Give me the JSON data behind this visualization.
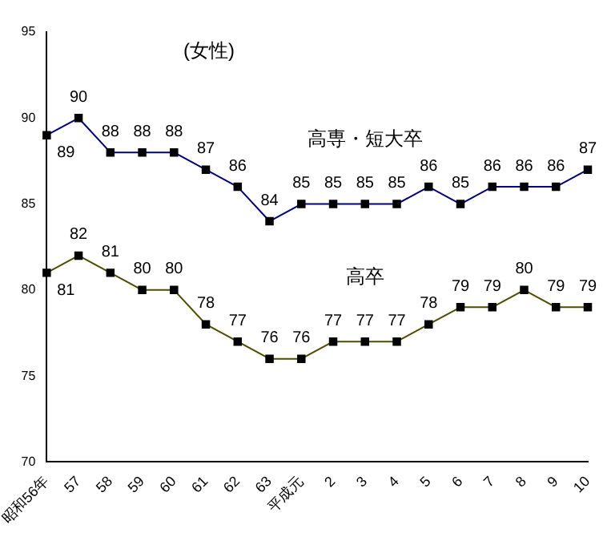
{
  "chart_data": {
    "type": "line",
    "title": "(女性)",
    "categories": [
      "昭和56年",
      "57",
      "58",
      "59",
      "60",
      "61",
      "62",
      "63",
      "平成元",
      "2",
      "3",
      "4",
      "5",
      "6",
      "7",
      "8",
      "9",
      "10"
    ],
    "series": [
      {
        "name": "高専・短大卒",
        "color": "#000080",
        "values": [
          89,
          90,
          88,
          88,
          88,
          87,
          86,
          84,
          85,
          85,
          85,
          85,
          86,
          85,
          86,
          86,
          86,
          87
        ]
      },
      {
        "name": "高卒",
        "color": "#4d4d00",
        "values": [
          81,
          82,
          81,
          80,
          80,
          78,
          77,
          76,
          76,
          77,
          77,
          77,
          78,
          79,
          79,
          80,
          79,
          79
        ]
      }
    ],
    "ylim": [
      70,
      95
    ],
    "yticks": [
      70,
      75,
      80,
      85,
      90,
      95
    ],
    "grid": false,
    "legend": false,
    "marker": "square",
    "line_style": "solid",
    "data_labels": true
  }
}
